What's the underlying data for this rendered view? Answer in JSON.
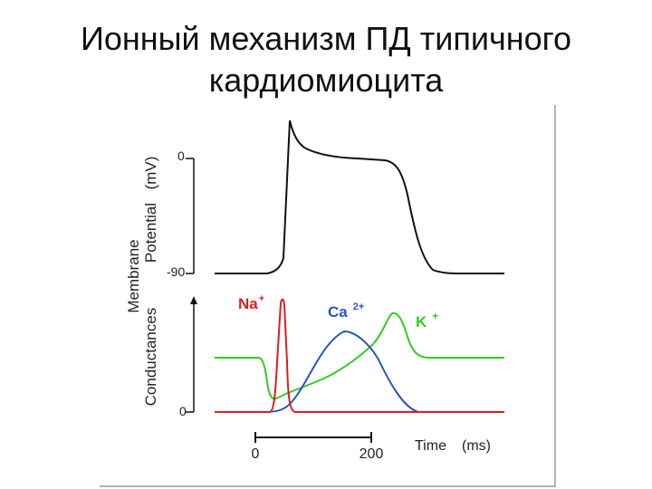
{
  "slide": {
    "title_line1": "Ионный механизм ПД типичного",
    "title_line2": "кардиомиоцита"
  },
  "figure": {
    "y_axis_title": {
      "membrane": "Membrane",
      "potential": "Potential",
      "potential_unit": "(mV)",
      "conductances": "Conductances"
    },
    "potential_ticks": {
      "top": "0",
      "bottom": "-90"
    },
    "conductance_tick": "0",
    "time_axis": {
      "start": "0",
      "end": "200",
      "label": "Time",
      "unit": "(ms)"
    },
    "ions": {
      "na": {
        "base": "Na",
        "charge": "+",
        "color": "#d8201c"
      },
      "ca": {
        "base": "Ca",
        "charge": "2+",
        "color": "#2457b8"
      },
      "k": {
        "base": "K",
        "charge": "+",
        "color": "#33cc22"
      }
    },
    "curve_colors": {
      "potential": "#111111",
      "na": "#d8201c",
      "ca": "#2457b8",
      "k": "#33cc22"
    }
  }
}
